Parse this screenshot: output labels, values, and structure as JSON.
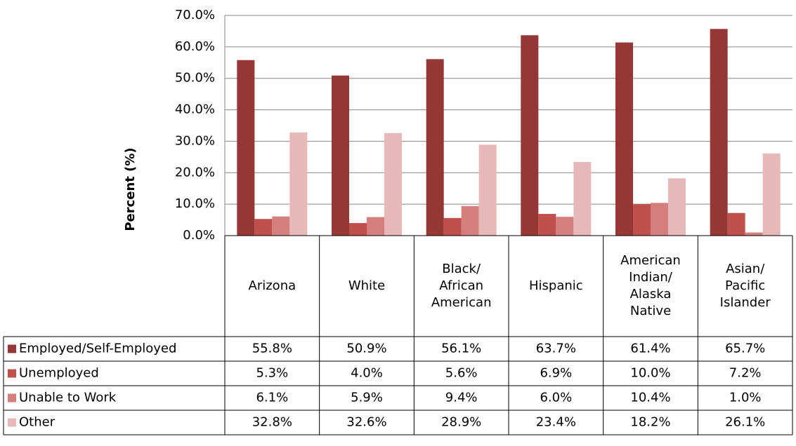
{
  "chart_data": {
    "type": "bar",
    "y_label": "Percent (%)",
    "categories": [
      "Arizona",
      "White",
      "Black/ African American",
      "Hispanic",
      "American Indian/ Alaska Native",
      "Asian/ Pacific Islander"
    ],
    "series": [
      {
        "name": "Employed/Self-Employed",
        "color": "#953735",
        "values": [
          55.8,
          50.9,
          56.1,
          63.7,
          61.4,
          65.7
        ],
        "value_labels": [
          "55.8%",
          "50.9%",
          "56.1%",
          "63.7%",
          "61.4%",
          "65.7%"
        ]
      },
      {
        "name": "Unemployed",
        "color": "#c0504d",
        "values": [
          5.3,
          4.0,
          5.6,
          6.9,
          10.0,
          7.2
        ],
        "value_labels": [
          "5.3%",
          "4.0%",
          "5.6%",
          "6.9%",
          "10.0%",
          "7.2%"
        ]
      },
      {
        "name": "Unable to Work",
        "color": "#d47f7e",
        "values": [
          6.1,
          5.9,
          9.4,
          6.0,
          10.4,
          1.0
        ],
        "value_labels": [
          "6.1%",
          "5.9%",
          "9.4%",
          "6.0%",
          "10.4%",
          "1.0%"
        ]
      },
      {
        "name": "Other",
        "color": "#e6b9b8",
        "values": [
          32.8,
          32.6,
          28.9,
          23.4,
          18.2,
          26.1
        ],
        "value_labels": [
          "32.8%",
          "32.6%",
          "28.9%",
          "23.4%",
          "18.2%",
          "26.1%"
        ]
      }
    ],
    "ylim": [
      0,
      70
    ],
    "yticks": [
      {
        "value": 0,
        "label": "0.0%"
      },
      {
        "value": 10,
        "label": "10.0%"
      },
      {
        "value": 20,
        "label": "20.0%"
      },
      {
        "value": 30,
        "label": "30.0%"
      },
      {
        "value": 40,
        "label": "40.0%"
      },
      {
        "value": 50,
        "label": "50.0%"
      },
      {
        "value": 60,
        "label": "60.0%"
      },
      {
        "value": 70,
        "label": "70.0%"
      }
    ],
    "grid": true
  }
}
